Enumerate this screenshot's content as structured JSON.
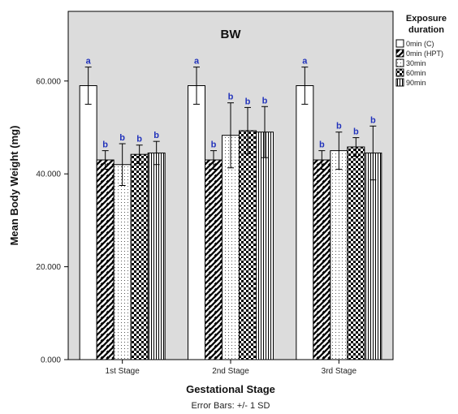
{
  "chart_data": {
    "type": "bar",
    "title": "BW",
    "xlabel": "Gestational Stage",
    "ylabel": "Mean Body Weight (mg)",
    "footnote": "Error Bars: +/- 1 SD",
    "ylim": [
      0,
      75
    ],
    "yticks": [
      0,
      20,
      40,
      60
    ],
    "ytick_labels": [
      "0.000",
      "20.000",
      "40.000",
      "60.000"
    ],
    "categories": [
      "1st Stage",
      "2nd Stage",
      "3rd Stage"
    ],
    "legend_title_lines": [
      "Exposure",
      "duration"
    ],
    "legend_position": "right",
    "series": [
      {
        "name": "0min (C)",
        "pattern": "plain",
        "values": [
          59,
          59,
          59
        ],
        "errors": [
          4,
          4,
          4
        ],
        "labels": [
          "a",
          "a",
          "a"
        ]
      },
      {
        "name": "0min (HPT)",
        "pattern": "diagonal",
        "values": [
          43,
          43,
          43
        ],
        "errors": [
          2,
          2,
          2
        ],
        "labels": [
          "b",
          "b",
          "b"
        ]
      },
      {
        "name": "30min",
        "pattern": "dots",
        "values": [
          42,
          48.3,
          45
        ],
        "errors": [
          4.5,
          7,
          4
        ],
        "labels": [
          "b",
          "b",
          "b"
        ]
      },
      {
        "name": "60min",
        "pattern": "checker",
        "values": [
          44.2,
          49.3,
          45.8
        ],
        "errors": [
          2,
          5,
          2
        ],
        "labels": [
          "b",
          "b",
          "b"
        ]
      },
      {
        "name": "90min",
        "pattern": "vertical",
        "values": [
          44.5,
          49,
          44.5
        ],
        "errors": [
          2.5,
          5.5,
          5.8
        ],
        "labels": [
          "b",
          "b",
          "b"
        ]
      }
    ],
    "grid": false,
    "colors": {
      "background": "#dcdcdc",
      "bar_fill": "#ffffff",
      "stroke": "#000000",
      "sig_label": "#2233bb"
    }
  }
}
